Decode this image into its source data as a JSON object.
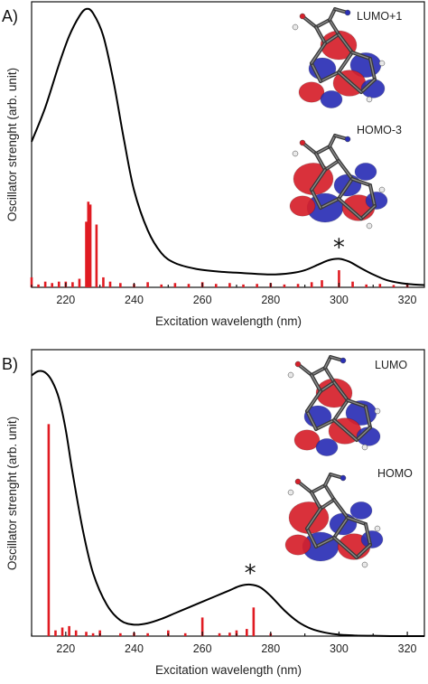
{
  "chart_data": [
    {
      "type": "line",
      "panel_label": "A)",
      "xlabel": "Excitation wavelength (nm)",
      "ylabel": "Oscillator strenght (arb. unit)",
      "xlim": [
        210,
        325
      ],
      "ylim": [
        0,
        1
      ],
      "xticks": [
        220,
        240,
        260,
        280,
        300,
        320
      ],
      "grid": false,
      "annotation": "*",
      "annotation_x": 300,
      "orbital_labels": [
        "LUMO+1",
        "HOMO-3"
      ],
      "curve": {
        "x": [
          210,
          214,
          218,
          221,
          224,
          226,
          228,
          231,
          234,
          237,
          240,
          244,
          248,
          252,
          258,
          265,
          272,
          280,
          286,
          290,
          294,
          297,
          300,
          303,
          306,
          310,
          314,
          318,
          322,
          325
        ],
        "y": [
          0.51,
          0.63,
          0.78,
          0.88,
          0.95,
          0.975,
          0.96,
          0.88,
          0.72,
          0.52,
          0.34,
          0.2,
          0.12,
          0.085,
          0.065,
          0.055,
          0.05,
          0.045,
          0.05,
          0.06,
          0.08,
          0.095,
          0.1,
          0.09,
          0.07,
          0.045,
          0.025,
          0.015,
          0.01,
          0.008
        ]
      },
      "sticks": {
        "x": [
          210,
          212,
          214,
          216,
          218,
          220,
          222,
          224,
          226,
          226.6,
          227.2,
          229,
          231,
          233,
          236,
          240,
          244,
          248,
          252,
          256,
          260,
          264,
          268,
          272,
          276,
          280,
          284,
          288,
          292,
          295,
          300,
          304,
          308,
          312,
          316,
          320
        ],
        "y": [
          0.035,
          0.01,
          0.02,
          0.015,
          0.02,
          0.02,
          0.018,
          0.03,
          0.23,
          0.3,
          0.29,
          0.22,
          0.035,
          0.02,
          0.015,
          0.012,
          0.018,
          0.01,
          0.015,
          0.012,
          0.018,
          0.012,
          0.015,
          0.01,
          0.012,
          0.015,
          0.01,
          0.012,
          0.018,
          0.025,
          0.06,
          0.02,
          0.01,
          0.012,
          0.008,
          0.01
        ]
      }
    },
    {
      "type": "line",
      "panel_label": "B)",
      "xlabel": "Excitation wavelength (nm)",
      "ylabel": "Oscillator strenght (arb. unit)",
      "xlim": [
        210,
        325
      ],
      "ylim": [
        0,
        1
      ],
      "xticks": [
        220,
        240,
        260,
        280,
        300,
        320
      ],
      "grid": false,
      "annotation": "*",
      "annotation_x": 274,
      "orbital_labels": [
        "LUMO",
        "HOMO"
      ],
      "curve": {
        "x": [
          210,
          212,
          214,
          216,
          218,
          220,
          222,
          225,
          228,
          232,
          236,
          240,
          244,
          248,
          252,
          256,
          260,
          264,
          268,
          271,
          274,
          277,
          280,
          284,
          288,
          292,
          296,
          300,
          305,
          310,
          315,
          320,
          325
        ],
        "y": [
          0.91,
          0.925,
          0.92,
          0.89,
          0.83,
          0.72,
          0.57,
          0.37,
          0.22,
          0.11,
          0.055,
          0.04,
          0.045,
          0.06,
          0.08,
          0.1,
          0.12,
          0.14,
          0.16,
          0.175,
          0.18,
          0.17,
          0.14,
          0.09,
          0.05,
          0.025,
          0.012,
          0.005,
          0.002,
          0.001,
          0,
          0,
          0
        ]
      },
      "sticks": {
        "x": [
          215,
          217,
          219,
          221,
          223,
          226,
          228,
          230,
          236,
          240,
          244,
          250,
          255,
          260,
          265,
          268,
          270,
          273,
          275,
          280
        ],
        "y": [
          0.74,
          0.02,
          0.03,
          0.035,
          0.02,
          0.015,
          0.01,
          0.02,
          0.01,
          0.012,
          0.01,
          0.02,
          0.01,
          0.065,
          0.01,
          0.012,
          0.02,
          0.025,
          0.1,
          0.01
        ]
      }
    }
  ]
}
